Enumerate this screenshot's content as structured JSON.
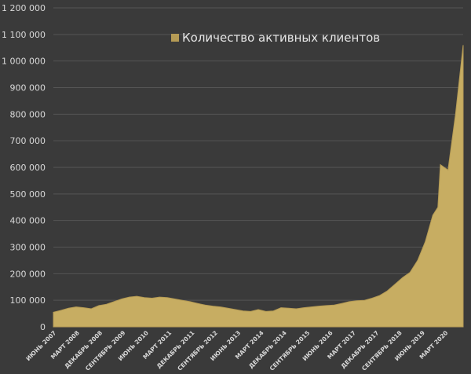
{
  "chart_data": {
    "type": "area",
    "title": "",
    "xlabel": "",
    "ylabel": "",
    "ylim": [
      0,
      1200000
    ],
    "grid": true,
    "legend_position": "top-center",
    "colors": {
      "background": "#3a3a3a",
      "series": "#b59b55",
      "series_fill": "#c7ad62",
      "grid": "#555555",
      "text": "#d9d9d9"
    },
    "y_ticks": [
      "0",
      "100 000",
      "200 000",
      "300 000",
      "400 000",
      "500 000",
      "600 000",
      "700 000",
      "800 000",
      "900 000",
      "1 000 000",
      "1 100 000",
      "1 200 000"
    ],
    "x_tick_labels": [
      "ИЮНЬ 2007",
      "МАРТ 2008",
      "ДЕКАБРЬ 2008",
      "СЕНТЯБРЬ 2009",
      "ИЮНЬ 2010",
      "МАРТ 2011",
      "ДЕКАБРЬ 2011",
      "СЕНТЯБРЬ 2012",
      "ИЮНЬ 2013",
      "МАРТ 2014",
      "ДЕКАБРЬ 2014",
      "СЕНТЯБРЬ 2015",
      "ИЮНЬ 2016",
      "МАРТ 2017",
      "ДЕКАБРЬ 2017",
      "СЕНТЯБРЬ 2018",
      "ИЮНЬ 2019",
      "МАРТ 2020"
    ],
    "series": [
      {
        "name": "Количество активных клиентов",
        "points": [
          [
            "2007-06",
            55000
          ],
          [
            "2007-09",
            62000
          ],
          [
            "2007-12",
            70000
          ],
          [
            "2008-03",
            75000
          ],
          [
            "2008-06",
            72000
          ],
          [
            "2008-09",
            68000
          ],
          [
            "2008-12",
            80000
          ],
          [
            "2009-03",
            85000
          ],
          [
            "2009-06",
            95000
          ],
          [
            "2009-09",
            105000
          ],
          [
            "2009-12",
            112000
          ],
          [
            "2010-03",
            115000
          ],
          [
            "2010-06",
            110000
          ],
          [
            "2010-09",
            108000
          ],
          [
            "2010-12",
            112000
          ],
          [
            "2011-03",
            110000
          ],
          [
            "2011-06",
            105000
          ],
          [
            "2011-09",
            100000
          ],
          [
            "2011-12",
            95000
          ],
          [
            "2012-03",
            88000
          ],
          [
            "2012-06",
            82000
          ],
          [
            "2012-09",
            78000
          ],
          [
            "2012-12",
            75000
          ],
          [
            "2013-03",
            70000
          ],
          [
            "2013-06",
            65000
          ],
          [
            "2013-09",
            60000
          ],
          [
            "2013-12",
            58000
          ],
          [
            "2014-03",
            65000
          ],
          [
            "2014-06",
            58000
          ],
          [
            "2014-09",
            60000
          ],
          [
            "2014-12",
            72000
          ],
          [
            "2015-03",
            70000
          ],
          [
            "2015-06",
            68000
          ],
          [
            "2015-09",
            72000
          ],
          [
            "2015-12",
            75000
          ],
          [
            "2016-03",
            78000
          ],
          [
            "2016-06",
            80000
          ],
          [
            "2016-09",
            82000
          ],
          [
            "2016-12",
            88000
          ],
          [
            "2017-03",
            95000
          ],
          [
            "2017-06",
            98000
          ],
          [
            "2017-09",
            100000
          ],
          [
            "2017-12",
            108000
          ],
          [
            "2018-03",
            118000
          ],
          [
            "2018-06",
            135000
          ],
          [
            "2018-09",
            160000
          ],
          [
            "2018-12",
            185000
          ],
          [
            "2019-03",
            205000
          ],
          [
            "2019-06",
            250000
          ],
          [
            "2019-09",
            320000
          ],
          [
            "2019-12",
            420000
          ],
          [
            "2020-02",
            450000
          ],
          [
            "2020-03",
            610000
          ],
          [
            "2020-06",
            590000
          ],
          [
            "2020-09",
            800000
          ],
          [
            "2020-12",
            1060000
          ]
        ]
      }
    ]
  }
}
